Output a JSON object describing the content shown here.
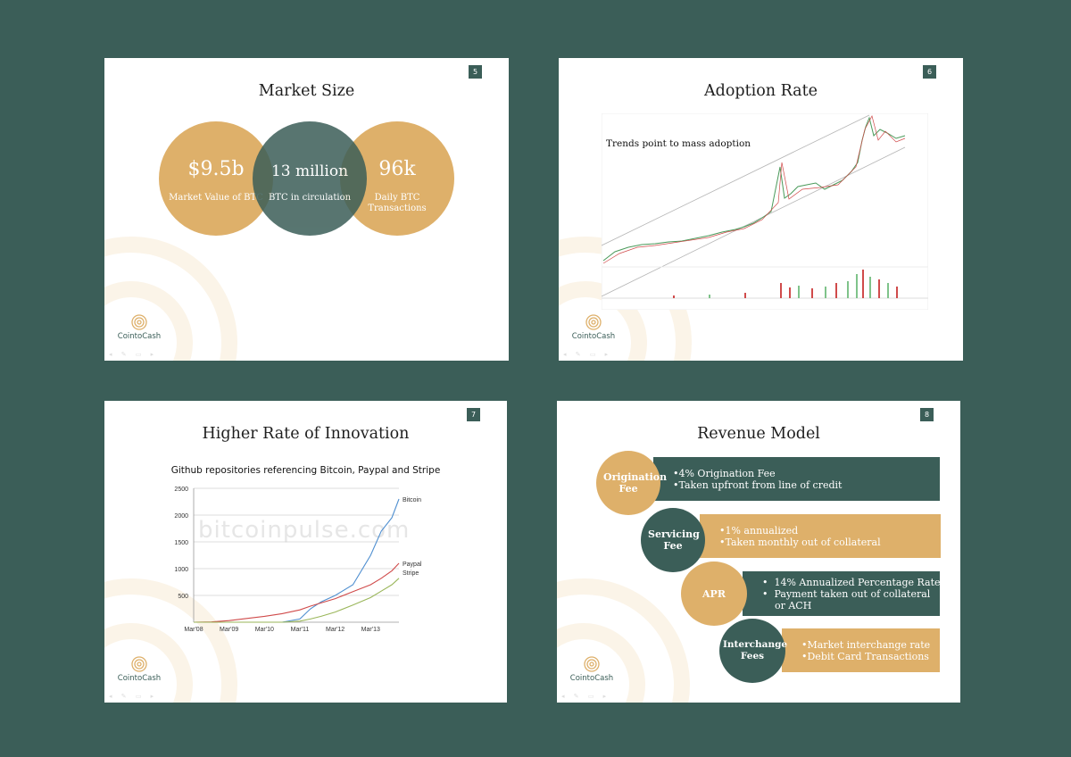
{
  "brand": {
    "name": "CointoCash",
    "teal": "#3b5e58",
    "gold": "#deb06a"
  },
  "slides": {
    "s5": {
      "number": "5",
      "title": "Market Size",
      "circles": [
        {
          "value": "$9.5b",
          "label": "Market Value of BTC"
        },
        {
          "value": "13 million",
          "label": "BTC in circulation"
        },
        {
          "value": "96k",
          "label": "Daily BTC Transactions"
        }
      ]
    },
    "s6": {
      "number": "6",
      "title": "Adoption Rate",
      "note": "Trends point to mass adoption"
    },
    "s7": {
      "number": "7",
      "title": "Higher Rate of Innovation",
      "watermark": "bitcoinpulse.com"
    },
    "s8": {
      "number": "8",
      "title": "Revenue Model",
      "rows": [
        {
          "name": "Origination Fee",
          "lines": [
            "•4% Origination Fee",
            "•Taken upfront from line of credit"
          ]
        },
        {
          "name": "Servicing Fee",
          "lines": [
            "•1% annualized",
            "•Taken monthly out of collateral"
          ]
        },
        {
          "name": "APR",
          "lines": [
            "•  14% Annualized Percentage Rate",
            "•  Payment taken out of collateral",
            "    or ACH"
          ]
        },
        {
          "name": "Interchange Fees",
          "lines": [
            "•Market interchange rate",
            "•Debit Card Transactions"
          ]
        }
      ]
    }
  },
  "chart_data": {
    "type": "line",
    "title": "Github repositories referencing Bitcoin, Paypal and Stripe",
    "xlabel": "",
    "ylabel": "",
    "categories": [
      "Mar'08",
      "Mar'09",
      "Mar'10",
      "Mar'11",
      "Mar'12",
      "Mar'13"
    ],
    "ylim": [
      0,
      2500
    ],
    "yticks": [
      500,
      1000,
      1500,
      2000,
      2500
    ],
    "x": [
      0,
      0.5,
      1,
      1.5,
      2,
      2.5,
      3,
      3.3,
      3.6,
      4,
      4.5,
      5,
      5.3,
      5.6,
      5.8
    ],
    "series": [
      {
        "name": "Bitcoin",
        "color": "#4f8fd0",
        "values": [
          0,
          0,
          0,
          0,
          0,
          0,
          60,
          250,
          380,
          500,
          700,
          1250,
          1700,
          1950,
          2300
        ]
      },
      {
        "name": "Paypal",
        "color": "#d04b4b",
        "values": [
          0,
          5,
          30,
          70,
          110,
          160,
          230,
          300,
          360,
          440,
          570,
          700,
          820,
          960,
          1100
        ]
      },
      {
        "name": "Stripe",
        "color": "#9ab65a",
        "values": [
          0,
          0,
          0,
          0,
          0,
          0,
          20,
          60,
          110,
          190,
          320,
          460,
          580,
          700,
          820
        ]
      }
    ],
    "legend": "inline-end",
    "grid": true
  }
}
